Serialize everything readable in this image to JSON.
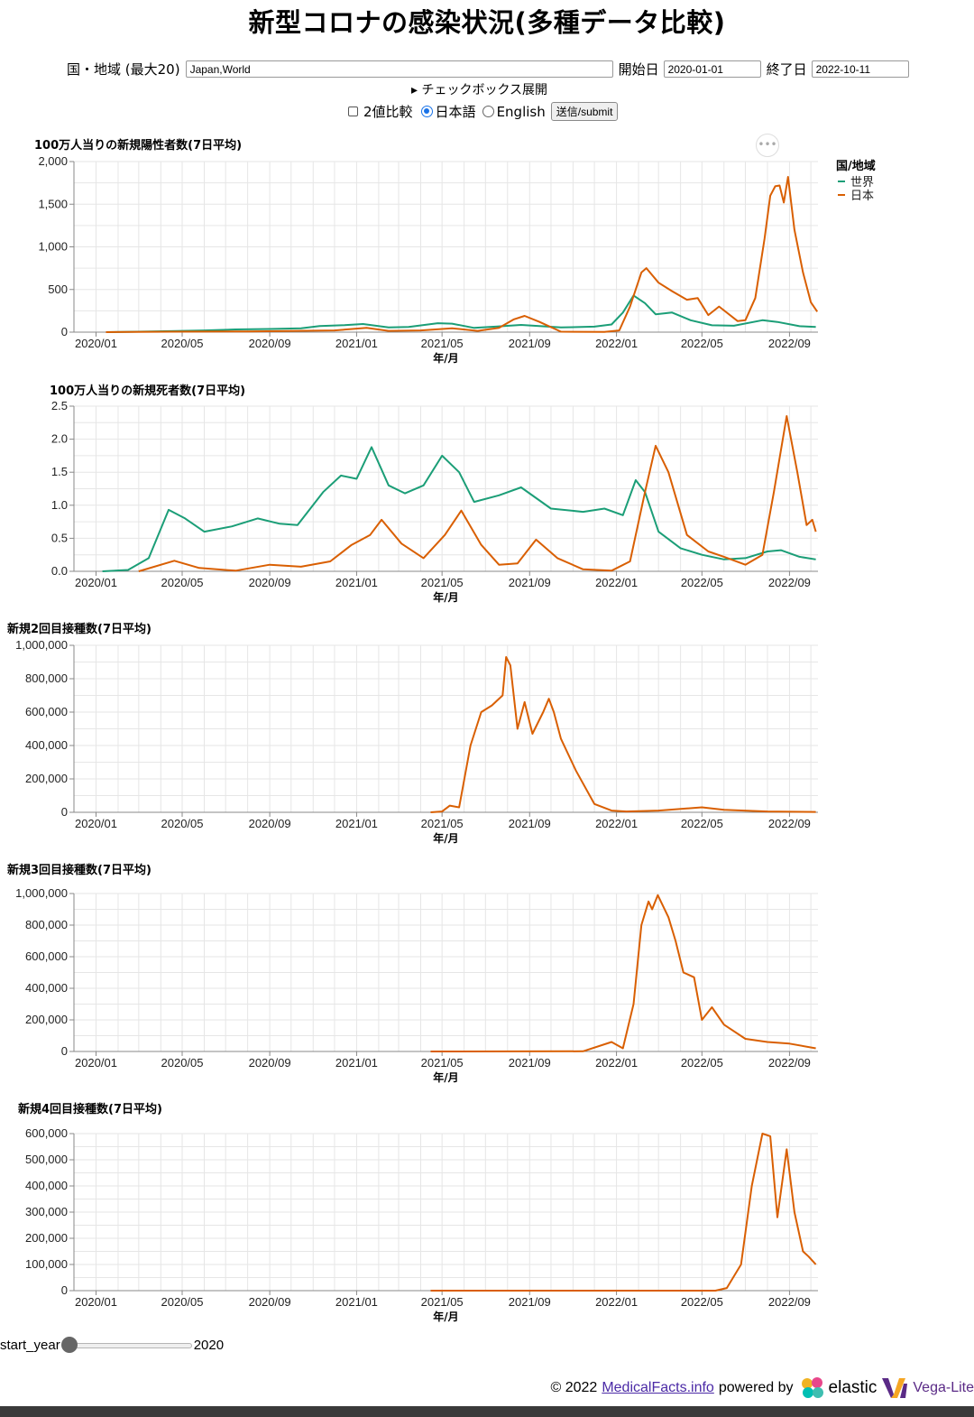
{
  "page_title": "新型コロナの感染状況(多種データ比較)",
  "form": {
    "country_label": "国・地域 (最大20)",
    "country_value": "Japan,World",
    "start_label": "開始日",
    "start_value": "2020-01-01",
    "end_label": "終了日",
    "end_value": "2022-10-11",
    "expand_label": "▸ チェックボックス展開",
    "compare_label": "2値比較",
    "lang_ja_label": "日本語",
    "lang_en_label": "English",
    "submit_label": "送信/submit"
  },
  "slider": {
    "label": "start_year",
    "value": "2020"
  },
  "footer": {
    "copyright": "© 2022",
    "site": "MedicalFacts.info",
    "powered": "powered by",
    "elastic": "elastic",
    "vega": "Vega-Lite"
  },
  "colors": {
    "world": "#1b9e77",
    "japan": "#d95f02",
    "grid": "#e6e6e6"
  },
  "chart_data": [
    {
      "type": "line",
      "title": "100万人当りの新規陽性者数(7日平均)",
      "xlabel": "年/月",
      "x_ticks": [
        "2020/01",
        "2020/05",
        "2020/09",
        "2021/01",
        "2021/05",
        "2021/09",
        "2022/01",
        "2022/05",
        "2022/09"
      ],
      "y_ticks": [
        "0",
        "500",
        "1,000",
        "1,500",
        "2,000"
      ],
      "ylim": [
        0,
        2000
      ],
      "legend": {
        "title": "国/地域",
        "position": "right",
        "entries": [
          "世界",
          "日本"
        ]
      },
      "series": [
        {
          "name": "世界",
          "color": "#1b9e77",
          "points": [
            [
              "2020-01-15",
              0
            ],
            [
              "2020-03-01",
              5
            ],
            [
              "2020-04-15",
              12
            ],
            [
              "2020-06-01",
              20
            ],
            [
              "2020-07-15",
              32
            ],
            [
              "2020-09-01",
              37
            ],
            [
              "2020-10-15",
              45
            ],
            [
              "2020-11-10",
              72
            ],
            [
              "2020-12-15",
              82
            ],
            [
              "2021-01-10",
              95
            ],
            [
              "2021-02-15",
              55
            ],
            [
              "2021-03-15",
              60
            ],
            [
              "2021-04-25",
              105
            ],
            [
              "2021-05-15",
              100
            ],
            [
              "2021-06-15",
              50
            ],
            [
              "2021-07-15",
              65
            ],
            [
              "2021-08-20",
              85
            ],
            [
              "2021-10-15",
              55
            ],
            [
              "2021-12-01",
              65
            ],
            [
              "2021-12-25",
              90
            ],
            [
              "2022-01-10",
              230
            ],
            [
              "2022-01-25",
              430
            ],
            [
              "2022-02-10",
              340
            ],
            [
              "2022-02-25",
              210
            ],
            [
              "2022-03-20",
              230
            ],
            [
              "2022-04-15",
              140
            ],
            [
              "2022-05-15",
              80
            ],
            [
              "2022-06-15",
              75
            ],
            [
              "2022-07-25",
              140
            ],
            [
              "2022-08-15",
              120
            ],
            [
              "2022-09-15",
              70
            ],
            [
              "2022-10-08",
              60
            ]
          ]
        },
        {
          "name": "日本",
          "color": "#d95f02",
          "points": [
            [
              "2020-01-15",
              0
            ],
            [
              "2020-04-15",
              5
            ],
            [
              "2020-08-01",
              8
            ],
            [
              "2020-12-01",
              20
            ],
            [
              "2021-01-15",
              50
            ],
            [
              "2021-02-15",
              15
            ],
            [
              "2021-04-01",
              20
            ],
            [
              "2021-05-15",
              45
            ],
            [
              "2021-06-20",
              15
            ],
            [
              "2021-07-20",
              50
            ],
            [
              "2021-08-10",
              150
            ],
            [
              "2021-08-25",
              190
            ],
            [
              "2021-09-15",
              120
            ],
            [
              "2021-10-15",
              5
            ],
            [
              "2021-12-15",
              2
            ],
            [
              "2022-01-05",
              20
            ],
            [
              "2022-01-20",
              300
            ],
            [
              "2022-02-05",
              700
            ],
            [
              "2022-02-12",
              750
            ],
            [
              "2022-03-01",
              580
            ],
            [
              "2022-03-20",
              480
            ],
            [
              "2022-04-10",
              380
            ],
            [
              "2022-04-25",
              400
            ],
            [
              "2022-05-10",
              200
            ],
            [
              "2022-05-25",
              300
            ],
            [
              "2022-06-20",
              130
            ],
            [
              "2022-07-01",
              140
            ],
            [
              "2022-07-15",
              400
            ],
            [
              "2022-07-28",
              1100
            ],
            [
              "2022-08-05",
              1600
            ],
            [
              "2022-08-12",
              1710
            ],
            [
              "2022-08-18",
              1720
            ],
            [
              "2022-08-24",
              1520
            ],
            [
              "2022-08-30",
              1820
            ],
            [
              "2022-09-08",
              1200
            ],
            [
              "2022-09-20",
              700
            ],
            [
              "2022-10-01",
              350
            ],
            [
              "2022-10-10",
              240
            ]
          ]
        }
      ]
    },
    {
      "type": "line",
      "title": "100万人当りの新規死者数(7日平均)",
      "xlabel": "年/月",
      "x_ticks": [
        "2020/01",
        "2020/05",
        "2020/09",
        "2021/01",
        "2021/05",
        "2021/09",
        "2022/01",
        "2022/05",
        "2022/09"
      ],
      "y_ticks": [
        "0.0",
        "0.5",
        "1.0",
        "1.5",
        "2.0",
        "2.5"
      ],
      "ylim": [
        0,
        2.5
      ],
      "series": [
        {
          "name": "世界",
          "color": "#1b9e77",
          "points": [
            [
              "2020-01-10",
              0
            ],
            [
              "2020-02-15",
              0.02
            ],
            [
              "2020-03-15",
              0.2
            ],
            [
              "2020-04-12",
              0.93
            ],
            [
              "2020-05-05",
              0.8
            ],
            [
              "2020-06-01",
              0.6
            ],
            [
              "2020-07-10",
              0.68
            ],
            [
              "2020-08-15",
              0.8
            ],
            [
              "2020-09-15",
              0.72
            ],
            [
              "2020-10-10",
              0.7
            ],
            [
              "2020-11-15",
              1.2
            ],
            [
              "2020-12-10",
              1.45
            ],
            [
              "2021-01-01",
              1.4
            ],
            [
              "2021-01-22",
              1.88
            ],
            [
              "2021-02-15",
              1.3
            ],
            [
              "2021-03-10",
              1.18
            ],
            [
              "2021-04-05",
              1.3
            ],
            [
              "2021-05-01",
              1.75
            ],
            [
              "2021-05-25",
              1.5
            ],
            [
              "2021-06-15",
              1.05
            ],
            [
              "2021-07-20",
              1.15
            ],
            [
              "2021-08-20",
              1.27
            ],
            [
              "2021-10-01",
              0.95
            ],
            [
              "2021-11-15",
              0.9
            ],
            [
              "2021-12-15",
              0.95
            ],
            [
              "2022-01-10",
              0.85
            ],
            [
              "2022-01-28",
              1.38
            ],
            [
              "2022-02-10",
              1.2
            ],
            [
              "2022-03-01",
              0.6
            ],
            [
              "2022-04-01",
              0.35
            ],
            [
              "2022-05-01",
              0.25
            ],
            [
              "2022-06-01",
              0.18
            ],
            [
              "2022-07-01",
              0.2
            ],
            [
              "2022-08-01",
              0.3
            ],
            [
              "2022-08-20",
              0.32
            ],
            [
              "2022-09-15",
              0.22
            ],
            [
              "2022-10-08",
              0.18
            ]
          ]
        },
        {
          "name": "日本",
          "color": "#d95f02",
          "points": [
            [
              "2020-03-01",
              0
            ],
            [
              "2020-04-20",
              0.16
            ],
            [
              "2020-05-25",
              0.05
            ],
            [
              "2020-07-15",
              0.01
            ],
            [
              "2020-09-01",
              0.1
            ],
            [
              "2020-10-15",
              0.07
            ],
            [
              "2020-11-25",
              0.15
            ],
            [
              "2020-12-25",
              0.4
            ],
            [
              "2021-01-20",
              0.55
            ],
            [
              "2021-02-05",
              0.78
            ],
            [
              "2021-03-05",
              0.42
            ],
            [
              "2021-04-05",
              0.2
            ],
            [
              "2021-05-05",
              0.55
            ],
            [
              "2021-05-28",
              0.92
            ],
            [
              "2021-06-25",
              0.4
            ],
            [
              "2021-07-20",
              0.1
            ],
            [
              "2021-08-15",
              0.12
            ],
            [
              "2021-09-10",
              0.48
            ],
            [
              "2021-10-10",
              0.2
            ],
            [
              "2021-11-15",
              0.03
            ],
            [
              "2021-12-25",
              0.01
            ],
            [
              "2022-01-20",
              0.15
            ],
            [
              "2022-02-10",
              1.2
            ],
            [
              "2022-02-25",
              1.9
            ],
            [
              "2022-03-15",
              1.5
            ],
            [
              "2022-04-10",
              0.55
            ],
            [
              "2022-05-10",
              0.3
            ],
            [
              "2022-06-01",
              0.22
            ],
            [
              "2022-07-01",
              0.1
            ],
            [
              "2022-07-25",
              0.25
            ],
            [
              "2022-08-10",
              1.2
            ],
            [
              "2022-08-28",
              2.35
            ],
            [
              "2022-09-12",
              1.5
            ],
            [
              "2022-09-25",
              0.7
            ],
            [
              "2022-10-03",
              0.78
            ],
            [
              "2022-10-08",
              0.6
            ]
          ]
        }
      ]
    },
    {
      "type": "line",
      "title": "新規2回目接種数(7日平均)",
      "xlabel": "年/月",
      "x_ticks": [
        "2020/01",
        "2020/05",
        "2020/09",
        "2021/01",
        "2021/05",
        "2021/09",
        "2022/01",
        "2022/05",
        "2022/09"
      ],
      "y_ticks": [
        "0",
        "200,000",
        "400,000",
        "600,000",
        "800,000",
        "1,000,000"
      ],
      "ylim": [
        0,
        1000000
      ],
      "series": [
        {
          "name": "日本",
          "color": "#d95f02",
          "points": [
            [
              "2021-04-15",
              0
            ],
            [
              "2021-05-01",
              5000
            ],
            [
              "2021-05-12",
              40000
            ],
            [
              "2021-05-25",
              30000
            ],
            [
              "2021-06-10",
              400000
            ],
            [
              "2021-06-25",
              600000
            ],
            [
              "2021-07-10",
              640000
            ],
            [
              "2021-07-25",
              700000
            ],
            [
              "2021-07-30",
              930000
            ],
            [
              "2021-08-05",
              880000
            ],
            [
              "2021-08-15",
              500000
            ],
            [
              "2021-08-25",
              660000
            ],
            [
              "2021-09-05",
              470000
            ],
            [
              "2021-09-20",
              600000
            ],
            [
              "2021-09-28",
              680000
            ],
            [
              "2021-10-05",
              600000
            ],
            [
              "2021-10-15",
              440000
            ],
            [
              "2021-11-05",
              250000
            ],
            [
              "2021-12-01",
              50000
            ],
            [
              "2021-12-25",
              10000
            ],
            [
              "2022-01-15",
              5000
            ],
            [
              "2022-03-01",
              10000
            ],
            [
              "2022-05-01",
              30000
            ],
            [
              "2022-06-01",
              15000
            ],
            [
              "2022-08-01",
              5000
            ],
            [
              "2022-10-08",
              2000
            ]
          ]
        }
      ]
    },
    {
      "type": "line",
      "title": "新規3回目接種数(7日平均)",
      "xlabel": "年/月",
      "x_ticks": [
        "2020/01",
        "2020/05",
        "2020/09",
        "2021/01",
        "2021/05",
        "2021/09",
        "2022/01",
        "2022/05",
        "2022/09"
      ],
      "y_ticks": [
        "0",
        "200,000",
        "400,000",
        "600,000",
        "800,000",
        "1,000,000"
      ],
      "ylim": [
        0,
        1000000
      ],
      "series": [
        {
          "name": "日本",
          "color": "#d95f02",
          "points": [
            [
              "2021-04-15",
              0
            ],
            [
              "2021-11-15",
              1000
            ],
            [
              "2021-12-25",
              60000
            ],
            [
              "2022-01-10",
              20000
            ],
            [
              "2022-01-25",
              300000
            ],
            [
              "2022-02-05",
              800000
            ],
            [
              "2022-02-15",
              950000
            ],
            [
              "2022-02-20",
              900000
            ],
            [
              "2022-02-28",
              990000
            ],
            [
              "2022-03-15",
              850000
            ],
            [
              "2022-03-25",
              700000
            ],
            [
              "2022-04-05",
              500000
            ],
            [
              "2022-04-20",
              470000
            ],
            [
              "2022-05-01",
              200000
            ],
            [
              "2022-05-15",
              280000
            ],
            [
              "2022-06-01",
              170000
            ],
            [
              "2022-07-01",
              80000
            ],
            [
              "2022-08-01",
              60000
            ],
            [
              "2022-09-01",
              50000
            ],
            [
              "2022-10-08",
              20000
            ]
          ]
        }
      ]
    },
    {
      "type": "line",
      "title": "新規4回目接種数(7日平均)",
      "xlabel": "年/月",
      "x_ticks": [
        "2020/01",
        "2020/05",
        "2020/09",
        "2021/01",
        "2021/05",
        "2021/09",
        "2022/01",
        "2022/05",
        "2022/09"
      ],
      "y_ticks": [
        "0",
        "100,000",
        "200,000",
        "300,000",
        "400,000",
        "500,000",
        "600,000"
      ],
      "ylim": [
        0,
        600000
      ],
      "series": [
        {
          "name": "日本",
          "color": "#d95f02",
          "points": [
            [
              "2021-04-15",
              0
            ],
            [
              "2022-05-20",
              0
            ],
            [
              "2022-06-05",
              10000
            ],
            [
              "2022-06-25",
              100000
            ],
            [
              "2022-07-10",
              400000
            ],
            [
              "2022-07-25",
              600000
            ],
            [
              "2022-08-05",
              590000
            ],
            [
              "2022-08-15",
              280000
            ],
            [
              "2022-08-28",
              540000
            ],
            [
              "2022-09-08",
              300000
            ],
            [
              "2022-09-20",
              150000
            ],
            [
              "2022-09-28",
              130000
            ],
            [
              "2022-10-08",
              100000
            ]
          ]
        }
      ]
    }
  ]
}
